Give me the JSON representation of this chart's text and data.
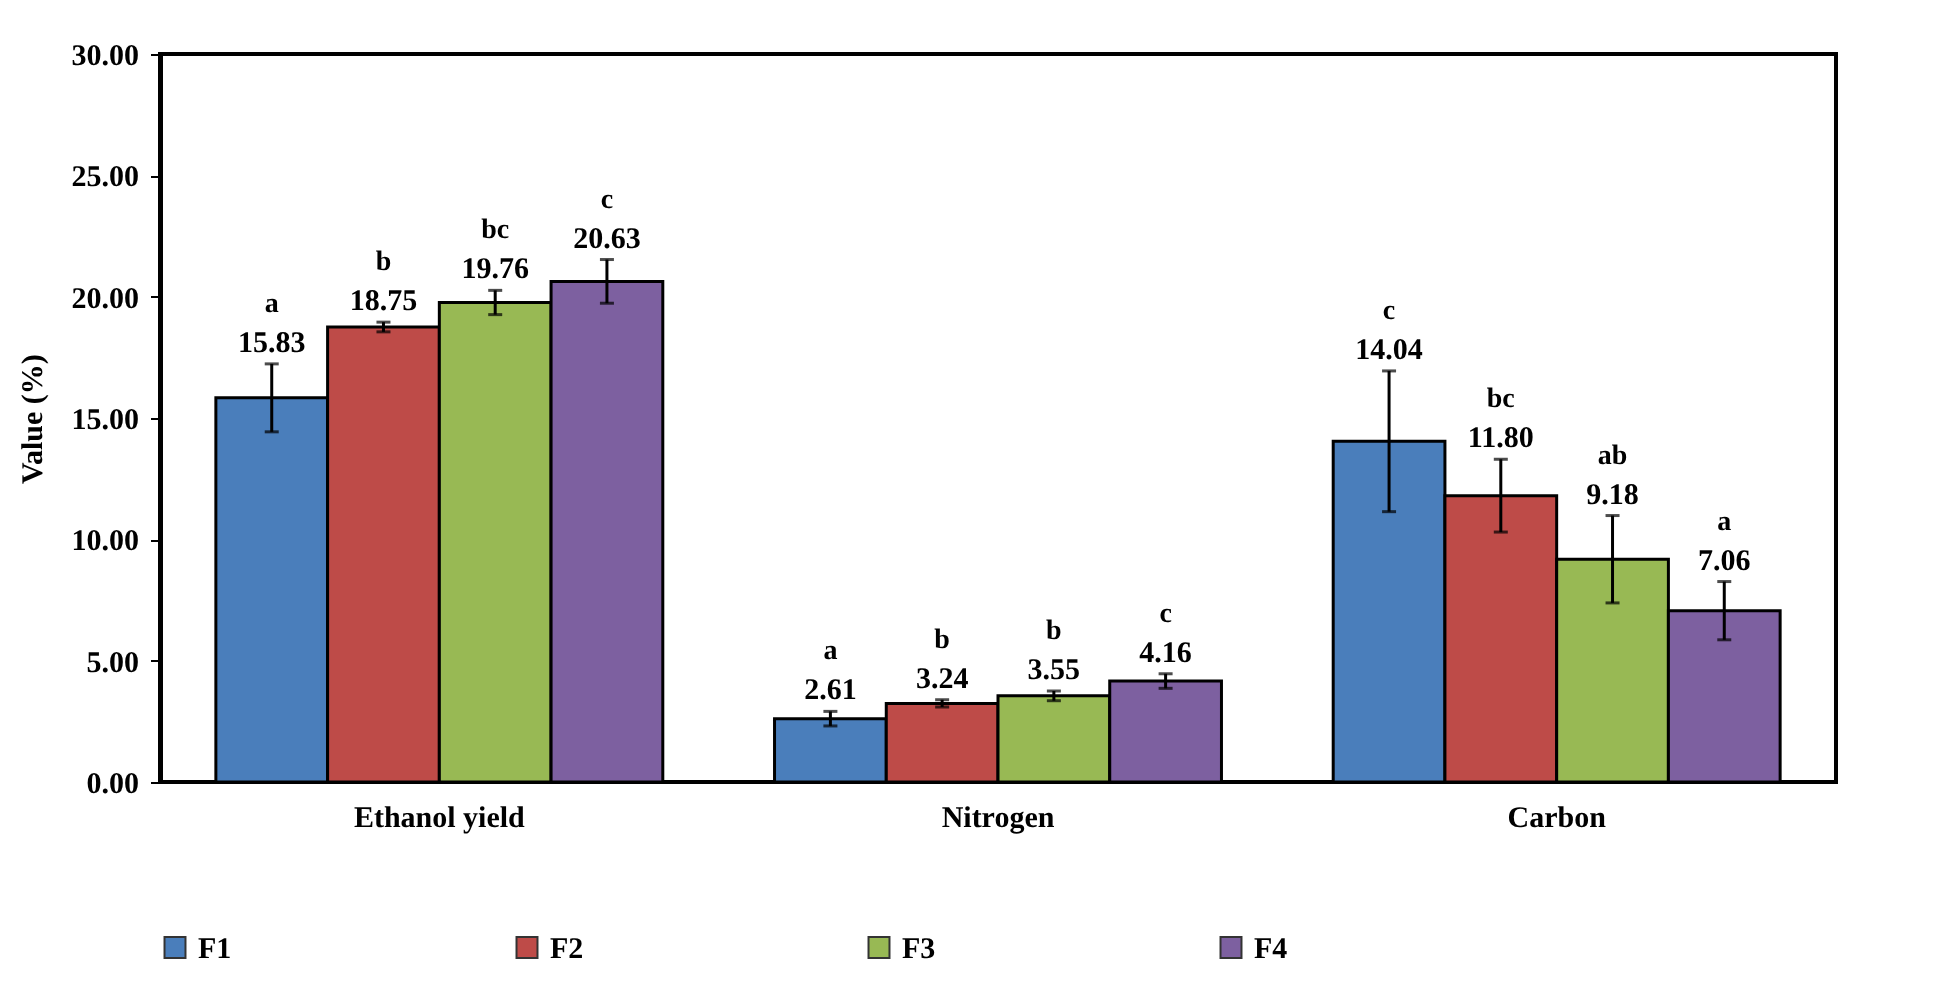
{
  "chart_data": {
    "type": "bar",
    "ylabel": "Value (%)",
    "categories": [
      "Ethanol yield",
      "Nitrogen",
      "Carbon"
    ],
    "series": [
      {
        "name": "F1",
        "color": "#4a7ebb",
        "values": [
          15.83,
          2.61,
          14.04
        ],
        "errors": [
          1.4,
          0.3,
          2.9
        ],
        "value_labels": [
          "15.83",
          "2.61",
          "14.04"
        ]
      },
      {
        "name": "F2",
        "color": "#be4b48",
        "values": [
          18.75,
          3.24,
          11.8
        ],
        "errors": [
          0.2,
          0.15,
          1.5
        ],
        "value_labels": [
          "18.75",
          "3.24",
          "11.80"
        ]
      },
      {
        "name": "F3",
        "color": "#98b954",
        "values": [
          19.76,
          3.55,
          9.18
        ],
        "errors": [
          0.5,
          0.2,
          1.8
        ],
        "value_labels": [
          "19.76",
          "3.55",
          "9.18"
        ]
      },
      {
        "name": "F4",
        "color": "#7d60a0",
        "values": [
          20.63,
          4.16,
          7.06
        ],
        "errors": [
          0.9,
          0.3,
          1.2
        ],
        "value_labels": [
          "20.63",
          "4.16",
          "7.06"
        ]
      }
    ],
    "ylim": [
      0,
      30
    ],
    "yticks": [
      {
        "value": 0,
        "label": "0.00"
      },
      {
        "value": 5,
        "label": "5.00"
      },
      {
        "value": 10,
        "label": "10.00"
      },
      {
        "value": 15,
        "label": "15.00"
      },
      {
        "value": 20,
        "label": "20.00"
      },
      {
        "value": 25,
        "label": "25.00"
      },
      {
        "value": 30,
        "label": "30.00"
      }
    ],
    "annotations": [
      "a",
      "b",
      "bc",
      "c",
      "a",
      "b",
      "b",
      "c",
      "c",
      "bc",
      "ab",
      "a"
    ],
    "legend": "bottom",
    "grid": false
  }
}
